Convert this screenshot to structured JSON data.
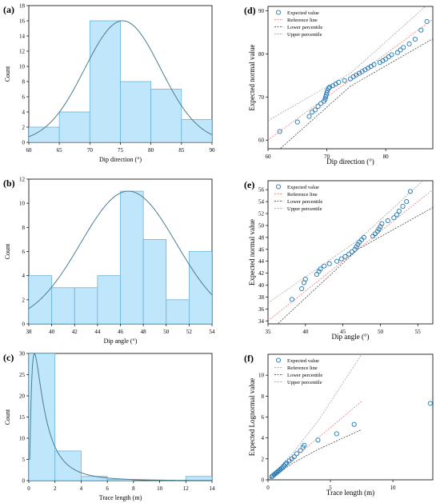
{
  "chart_data": [
    {
      "panel": "(a)",
      "type": "bar",
      "subtype": "histogram",
      "bins": [
        [
          60,
          65
        ],
        [
          65,
          70
        ],
        [
          70,
          75
        ],
        [
          75,
          80
        ],
        [
          80,
          85
        ],
        [
          85,
          90
        ]
      ],
      "values": [
        2,
        4,
        16,
        8,
        7,
        3
      ],
      "fit_curve": "normal",
      "xlabel": "Dip direction (°)",
      "ylabel": "Count",
      "xlim": [
        60,
        90
      ],
      "ylim": [
        0,
        18
      ],
      "xticks": [
        "60",
        "65",
        "70",
        "75",
        "80",
        "85",
        "90"
      ],
      "yticks": [
        "0",
        "2",
        "4",
        "6",
        "8",
        "10",
        "12",
        "14",
        "16",
        "18"
      ],
      "colors": {
        "bar_fill": "#bfe6fb",
        "bar_edge": "#6ab4dc",
        "curve": "#4a7f8e"
      }
    },
    {
      "panel": "(b)",
      "type": "bar",
      "subtype": "histogram",
      "bins": [
        [
          38,
          40
        ],
        [
          40,
          42
        ],
        [
          42,
          44
        ],
        [
          44,
          46
        ],
        [
          46,
          48
        ],
        [
          48,
          50
        ],
        [
          50,
          52
        ],
        [
          52,
          54
        ]
      ],
      "values": [
        4,
        3,
        3,
        4,
        11,
        7,
        2,
        6
      ],
      "fit_curve": "normal",
      "xlabel": "Dip angle (°)",
      "ylabel": "Count",
      "xlim": [
        38,
        54
      ],
      "ylim": [
        0,
        12
      ],
      "xticks": [
        "38",
        "40",
        "42",
        "44",
        "46",
        "48",
        "50",
        "52",
        "54"
      ],
      "yticks": [
        "0",
        "2",
        "4",
        "6",
        "8",
        "10",
        "12"
      ],
      "colors": {
        "bar_fill": "#bfe6fb",
        "bar_edge": "#6ab4dc",
        "curve": "#4a7f8e"
      }
    },
    {
      "panel": "(c)",
      "type": "bar",
      "subtype": "histogram",
      "bins": [
        [
          0,
          2
        ],
        [
          2,
          4
        ],
        [
          4,
          6
        ],
        [
          6,
          8
        ],
        [
          8,
          10
        ],
        [
          10,
          12
        ],
        [
          12,
          14
        ]
      ],
      "values": [
        30,
        7,
        1,
        0.3,
        0,
        0,
        1
      ],
      "fit_curve": "lognormal",
      "xlabel": "Trace length (m)",
      "ylabel": "Count",
      "xlim": [
        0,
        14
      ],
      "ylim": [
        0,
        30
      ],
      "xticks": [
        "0",
        "2",
        "4",
        "6",
        "8",
        "10",
        "12",
        "14"
      ],
      "yticks": [
        "0",
        "5",
        "10",
        "15",
        "20",
        "25",
        "30"
      ],
      "colors": {
        "bar_fill": "#bfe6fb",
        "bar_edge": "#6ab4dc",
        "curve": "#4a7f8e"
      }
    },
    {
      "panel": "(d)",
      "type": "scatter",
      "subtype": "probability-plot",
      "xlabel": "Dip direction (°)",
      "ylabel": "Expected normal value",
      "xlim": [
        60,
        88
      ],
      "ylim": [
        58,
        91
      ],
      "xticks": [
        "60",
        "70",
        "80"
      ],
      "yticks": [
        "60",
        "70",
        "80",
        "90"
      ],
      "legend": [
        "Expected value",
        "Reference line",
        "Lower percentile",
        "Upper percentile"
      ],
      "legend_position": "top-left",
      "reference_line": [
        [
          60,
          60
        ],
        [
          88,
          88
        ]
      ],
      "lower_percentile": [
        [
          60,
          55.5
        ],
        [
          74,
          72.5
        ],
        [
          88,
          83.5
        ]
      ],
      "upper_percentile": [
        [
          60,
          64.5
        ],
        [
          74,
          75.5
        ],
        [
          88,
          92.5
        ]
      ],
      "points": [
        [
          62,
          62
        ],
        [
          65,
          64.2
        ],
        [
          67,
          65.5
        ],
        [
          67.5,
          66.5
        ],
        [
          68,
          67
        ],
        [
          68.5,
          67.8
        ],
        [
          69,
          68.5
        ],
        [
          69.5,
          69
        ],
        [
          69.7,
          69.5
        ],
        [
          69.8,
          70
        ],
        [
          69.9,
          70.5
        ],
        [
          70,
          71
        ],
        [
          70.1,
          71.5
        ],
        [
          70.3,
          72
        ],
        [
          70.5,
          72.3
        ],
        [
          71,
          72.6
        ],
        [
          71.5,
          73
        ],
        [
          72,
          73.4
        ],
        [
          73,
          73.8
        ],
        [
          74,
          74.2
        ],
        [
          74.5,
          74.7
        ],
        [
          75,
          75.1
        ],
        [
          75.5,
          75.5
        ],
        [
          76,
          75.9
        ],
        [
          76.5,
          76.3
        ],
        [
          77,
          76.7
        ],
        [
          77.5,
          77.1
        ],
        [
          78,
          77.5
        ],
        [
          79,
          78
        ],
        [
          79.5,
          78.4
        ],
        [
          80,
          78.8
        ],
        [
          80.5,
          79.3
        ],
        [
          81,
          79.8
        ],
        [
          82,
          80.3
        ],
        [
          82.5,
          80.9
        ],
        [
          83,
          81.5
        ],
        [
          84,
          82.3
        ],
        [
          85,
          83.4
        ],
        [
          86,
          85.5
        ],
        [
          87,
          87.5
        ]
      ],
      "colors": {
        "points": "#1f77b4",
        "reference": "#e07070",
        "lower": "#333333",
        "upper": "#999999"
      }
    },
    {
      "panel": "(e)",
      "type": "scatter",
      "subtype": "probability-plot",
      "xlabel": "Dip angle (°)",
      "ylabel": "Expected normal value",
      "xlim": [
        35,
        57
      ],
      "ylim": [
        33.5,
        57.5
      ],
      "xticks": [
        "35",
        "40",
        "45",
        "50",
        "55"
      ],
      "yticks": [
        "34",
        "36",
        "38",
        "40",
        "42",
        "44",
        "46",
        "48",
        "50",
        "52",
        "54",
        "56"
      ],
      "legend": [
        "Expected value",
        "Reference line",
        "Lower percentile",
        "Upper percentile"
      ],
      "legend_position": "top-left",
      "reference_line": [
        [
          35,
          34
        ],
        [
          57,
          56
        ]
      ],
      "lower_percentile": [
        [
          35,
          32
        ],
        [
          47,
          46
        ],
        [
          57,
          53
        ]
      ],
      "upper_percentile": [
        [
          35,
          37
        ],
        [
          47,
          47.5
        ],
        [
          57,
          59
        ]
      ],
      "points": [
        [
          38.2,
          37.6
        ],
        [
          39.5,
          39.4
        ],
        [
          39.8,
          40.4
        ],
        [
          40,
          41
        ],
        [
          41.5,
          41.8
        ],
        [
          41.8,
          42.3
        ],
        [
          42,
          42.7
        ],
        [
          42.5,
          43.2
        ],
        [
          43.2,
          43.6
        ],
        [
          44.2,
          44
        ],
        [
          44.8,
          44.4
        ],
        [
          45.3,
          44.8
        ],
        [
          45.8,
          45.2
        ],
        [
          46.2,
          45.6
        ],
        [
          46.6,
          46
        ],
        [
          46.8,
          46.4
        ],
        [
          47,
          46.8
        ],
        [
          47.2,
          47.2
        ],
        [
          47.5,
          47.6
        ],
        [
          47.8,
          48
        ],
        [
          49,
          48.2
        ],
        [
          49.3,
          48.6
        ],
        [
          49.6,
          49
        ],
        [
          49.8,
          49.4
        ],
        [
          50,
          49.8
        ],
        [
          50.2,
          50.3
        ],
        [
          51,
          50.8
        ],
        [
          51.8,
          51.3
        ],
        [
          52.2,
          51.8
        ],
        [
          52.5,
          52.4
        ],
        [
          53,
          53.2
        ],
        [
          53.5,
          54
        ],
        [
          54,
          55.7
        ]
      ],
      "colors": {
        "points": "#1f77b4",
        "reference": "#e07070",
        "lower": "#333333",
        "upper": "#999999"
      }
    },
    {
      "panel": "(f)",
      "type": "scatter",
      "subtype": "probability-plot",
      "xlabel": "Trace length (m)",
      "ylabel": "Expected Lognormal value",
      "xlim": [
        0,
        13.2
      ],
      "ylim": [
        0,
        12
      ],
      "xticks": [
        "0",
        "5",
        "10"
      ],
      "yticks": [
        "0",
        "2",
        "4",
        "6",
        "8",
        "10"
      ],
      "legend": [
        "Expected value",
        "Reference line",
        "Lower percentile",
        "Upper percentile"
      ],
      "legend_position": "top-left",
      "reference_line": [
        [
          0,
          0
        ],
        [
          7.5,
          7.5
        ]
      ],
      "lower_percentile": [
        [
          0,
          0
        ],
        [
          2,
          1.6
        ],
        [
          4,
          2.9
        ],
        [
          7.5,
          4.8
        ]
      ],
      "upper_percentile": [
        [
          0,
          0
        ],
        [
          2,
          2.6
        ],
        [
          4,
          5.6
        ],
        [
          7.5,
          12
        ]
      ],
      "points": [
        [
          0.3,
          0.3
        ],
        [
          0.4,
          0.4
        ],
        [
          0.5,
          0.5
        ],
        [
          0.6,
          0.6
        ],
        [
          0.7,
          0.7
        ],
        [
          0.8,
          0.8
        ],
        [
          0.9,
          0.9
        ],
        [
          1,
          1
        ],
        [
          1.1,
          1.1
        ],
        [
          1.2,
          1.2
        ],
        [
          1.3,
          1.35
        ],
        [
          1.4,
          1.5
        ],
        [
          1.5,
          1.6
        ],
        [
          1.7,
          1.8
        ],
        [
          1.9,
          2
        ],
        [
          2.1,
          2.2
        ],
        [
          2.3,
          2.5
        ],
        [
          2.6,
          2.8
        ],
        [
          2.8,
          3.1
        ],
        [
          2.9,
          3.3
        ],
        [
          4,
          3.8
        ],
        [
          5.5,
          4.4
        ],
        [
          6.9,
          5.3
        ],
        [
          13,
          7.3
        ]
      ],
      "colors": {
        "points": "#1f77b4",
        "reference": "#e07070",
        "lower": "#333333",
        "upper": "#999999"
      }
    }
  ]
}
